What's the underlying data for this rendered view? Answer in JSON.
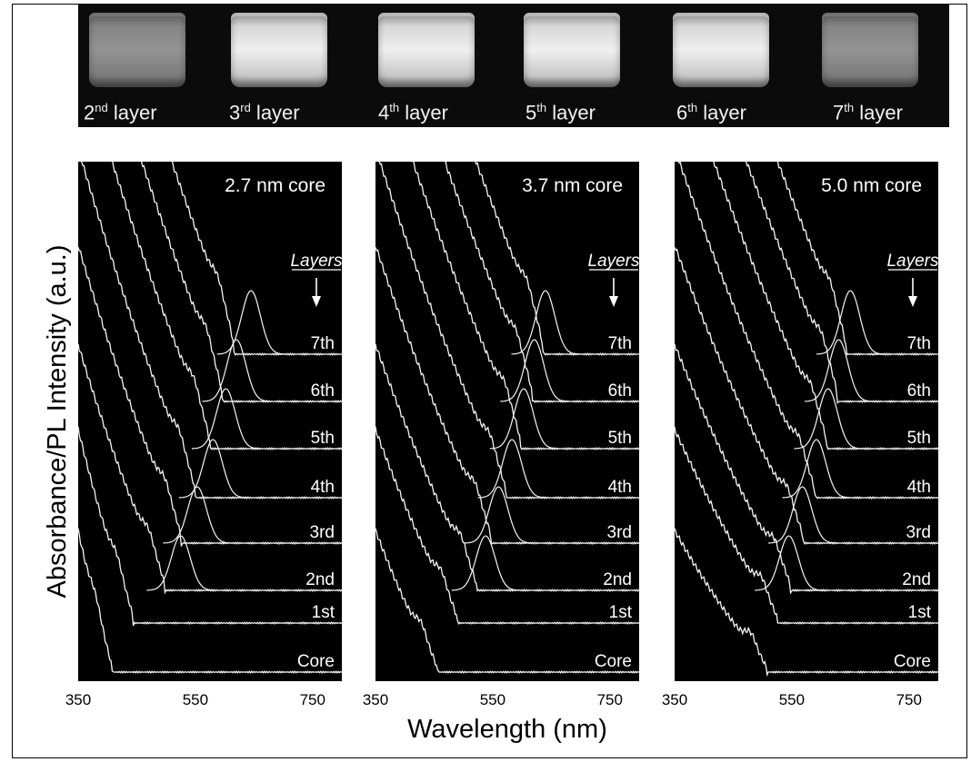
{
  "photo_labels": [
    {
      "num": "2",
      "sup": "nd",
      "rest": " layer"
    },
    {
      "num": "3",
      "sup": "rd",
      "rest": " layer"
    },
    {
      "num": "4",
      "sup": "th",
      "rest": " layer"
    },
    {
      "num": "5",
      "sup": "th",
      "rest": " layer"
    },
    {
      "num": "6",
      "sup": "th",
      "rest": " layer"
    },
    {
      "num": "7",
      "sup": "th",
      "rest": " layer"
    }
  ],
  "axis": {
    "ylabel": "Absorbance/PL Intensity (a.u.)",
    "xlabel": "Wavelength (nm)",
    "xticks": [
      350,
      550,
      750
    ],
    "xlim": [
      350,
      800
    ]
  },
  "layers_header": "Layers",
  "chart_data": [
    {
      "type": "line",
      "title": "2.7 nm core",
      "series": [
        {
          "name": "Core",
          "abs_peak": 380,
          "pl_peak": null
        },
        {
          "name": "1st",
          "abs_peak": 416,
          "pl_peak": null
        },
        {
          "name": "2nd",
          "abs_peak": 470,
          "pl_peak": 525
        },
        {
          "name": "3rd",
          "abs_peak": 498,
          "pl_peak": 553
        },
        {
          "name": "4th",
          "abs_peak": 522,
          "pl_peak": 580
        },
        {
          "name": "5th",
          "abs_peak": 547,
          "pl_peak": 602
        },
        {
          "name": "6th",
          "abs_peak": 568,
          "pl_peak": 620
        },
        {
          "name": "7th",
          "abs_peak": 588,
          "pl_peak": 645
        }
      ]
    },
    {
      "type": "line",
      "title": "3.7 nm core",
      "series": [
        {
          "name": "Core",
          "abs_peak": 428,
          "pl_peak": null
        },
        {
          "name": "1st",
          "abs_peak": 462,
          "pl_peak": null
        },
        {
          "name": "2nd",
          "abs_peak": 495,
          "pl_peak": 538
        },
        {
          "name": "3rd",
          "abs_peak": 520,
          "pl_peak": 560
        },
        {
          "name": "4th",
          "abs_peak": 545,
          "pl_peak": 583
        },
        {
          "name": "5th",
          "abs_peak": 570,
          "pl_peak": 603
        },
        {
          "name": "6th",
          "abs_peak": 590,
          "pl_peak": 621
        },
        {
          "name": "7th",
          "abs_peak": 608,
          "pl_peak": 640
        }
      ]
    },
    {
      "type": "line",
      "title": "5.0 nm core",
      "series": [
        {
          "name": "Core",
          "abs_peak": 480,
          "pl_peak": null
        },
        {
          "name": "1st",
          "abs_peak": 498,
          "pl_peak": null
        },
        {
          "name": "2nd",
          "abs_peak": 520,
          "pl_peak": 545
        },
        {
          "name": "3rd",
          "abs_peak": 542,
          "pl_peak": 568
        },
        {
          "name": "4th",
          "abs_peak": 562,
          "pl_peak": 592
        },
        {
          "name": "5th",
          "abs_peak": 582,
          "pl_peak": 612
        },
        {
          "name": "6th",
          "abs_peak": 600,
          "pl_peak": 630
        },
        {
          "name": "7th",
          "abs_peak": 615,
          "pl_peak": 650
        }
      ]
    }
  ]
}
